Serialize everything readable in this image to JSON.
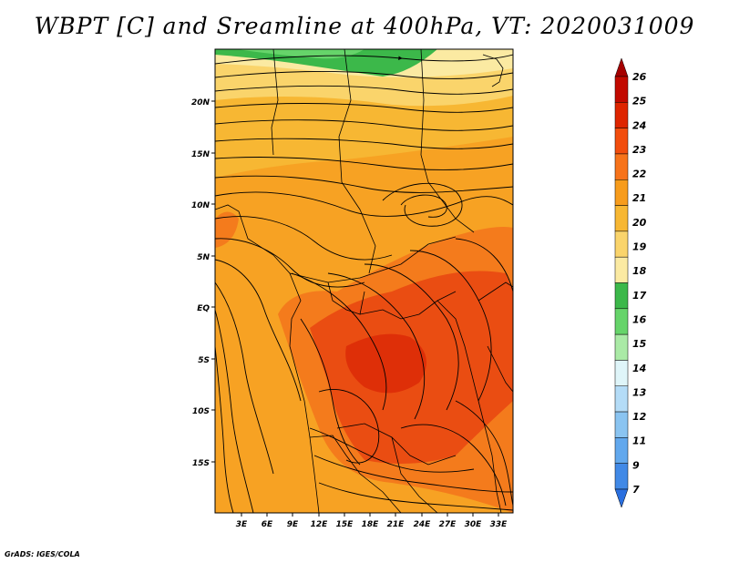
{
  "title": "WBPT [C] and Sreamline at 400hPa, VT: 2020031009",
  "credit": "GrADS: IGES/COLA",
  "lat_labels": [
    "20N",
    "15N",
    "10N",
    "5N",
    "EQ",
    "5S",
    "10S",
    "15S"
  ],
  "lon_labels": [
    "3E",
    "6E",
    "9E",
    "12E",
    "15E",
    "18E",
    "21E",
    "24E",
    "27E",
    "30E",
    "33E"
  ],
  "colorbar": {
    "labels": [
      "26",
      "25",
      "24",
      "23",
      "22",
      "21",
      "20",
      "19",
      "18",
      "17",
      "16",
      "15",
      "14",
      "13",
      "12",
      "11",
      "9",
      "7"
    ],
    "colors": [
      "#a50000",
      "#c20a00",
      "#de2500",
      "#f24d0d",
      "#f7731a",
      "#f79c1c",
      "#f7b733",
      "#fad46b",
      "#fbeaa2",
      "#3cb84a",
      "#66d46a",
      "#aaeaa6",
      "#dff5f9",
      "#b4dcf7",
      "#8ac4f1",
      "#62a8ed",
      "#4189e6",
      "#2a6fdf"
    ]
  },
  "map": {
    "field": "WBPT",
    "units": "C",
    "level": "400hPa",
    "valid_time": "2020031009",
    "region": {
      "lon": [
        0,
        34
      ],
      "lat": [
        -20,
        25
      ]
    }
  }
}
